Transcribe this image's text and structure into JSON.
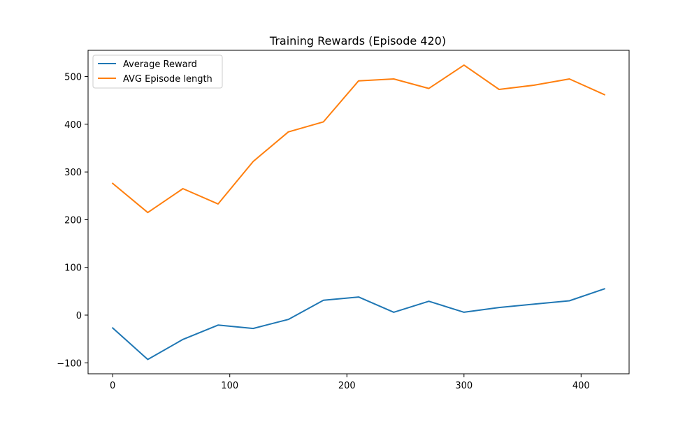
{
  "chart_data": {
    "type": "line",
    "title": "Training Rewards (Episode 420)",
    "xlabel": "",
    "ylabel": "",
    "xlim": [
      -21,
      441
    ],
    "ylim": [
      -123,
      555
    ],
    "x_ticks": [
      0,
      100,
      200,
      300,
      400
    ],
    "y_ticks": [
      -100,
      0,
      100,
      200,
      300,
      400,
      500
    ],
    "x_tick_labels": [
      "0",
      "100",
      "200",
      "300",
      "400"
    ],
    "y_tick_labels": [
      "−100",
      "0",
      "100",
      "200",
      "300",
      "400",
      "500"
    ],
    "grid": false,
    "legend_position": "top-left",
    "x": [
      0,
      30,
      60,
      90,
      120,
      150,
      180,
      210,
      240,
      270,
      300,
      330,
      360,
      390,
      420
    ],
    "series": [
      {
        "name": "Average Reward",
        "color": "#1f77b4",
        "values": [
          -27,
          -93,
          -51,
          -21,
          -28,
          -9,
          31,
          38,
          6,
          29,
          6,
          16,
          23,
          30,
          55
        ]
      },
      {
        "name": "AVG Episode length",
        "color": "#ff7f0e",
        "values": [
          276,
          215,
          265,
          233,
          322,
          384,
          405,
          491,
          495,
          475,
          524,
          473,
          482,
          495,
          462
        ]
      }
    ]
  }
}
